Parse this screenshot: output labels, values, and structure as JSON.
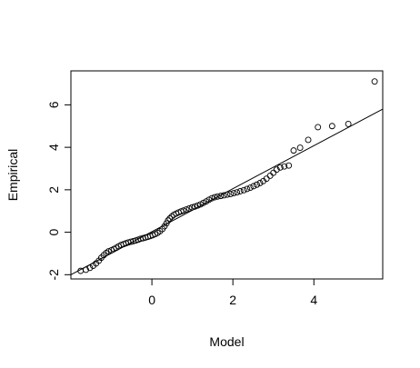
{
  "chart_data": {
    "type": "scatter",
    "title": "",
    "xlabel": "Model",
    "ylabel": "Empirical",
    "xlim": [
      -2.0,
      5.7
    ],
    "ylim": [
      -2.2,
      7.6
    ],
    "xticks": [
      0,
      2,
      4
    ],
    "yticks": [
      -2,
      0,
      2,
      4,
      6
    ],
    "grid": false,
    "legend": "none",
    "line": {
      "x1": -2.0,
      "y1": -2.0,
      "x2": 5.7,
      "y2": 5.8
    },
    "points": [
      [
        -1.76,
        -1.82
      ],
      [
        -1.63,
        -1.77
      ],
      [
        -1.53,
        -1.68
      ],
      [
        -1.45,
        -1.58
      ],
      [
        -1.38,
        -1.47
      ],
      [
        -1.31,
        -1.34
      ],
      [
        -1.25,
        -1.2
      ],
      [
        -1.19,
        -1.08
      ],
      [
        -1.13,
        -0.98
      ],
      [
        -1.07,
        -0.9
      ],
      [
        -1.0,
        -0.85
      ],
      [
        -0.94,
        -0.79
      ],
      [
        -0.88,
        -0.73
      ],
      [
        -0.82,
        -0.66
      ],
      [
        -0.76,
        -0.6
      ],
      [
        -0.7,
        -0.56
      ],
      [
        -0.64,
        -0.52
      ],
      [
        -0.58,
        -0.48
      ],
      [
        -0.52,
        -0.45
      ],
      [
        -0.46,
        -0.42
      ],
      [
        -0.4,
        -0.39
      ],
      [
        -0.34,
        -0.35
      ],
      [
        -0.28,
        -0.31
      ],
      [
        -0.22,
        -0.28
      ],
      [
        -0.16,
        -0.25
      ],
      [
        -0.1,
        -0.22
      ],
      [
        -0.04,
        -0.18
      ],
      [
        0.02,
        -0.14
      ],
      [
        0.08,
        -0.09
      ],
      [
        0.14,
        -0.03
      ],
      [
        0.2,
        0.05
      ],
      [
        0.26,
        0.15
      ],
      [
        0.31,
        0.28
      ],
      [
        0.36,
        0.42
      ],
      [
        0.4,
        0.55
      ],
      [
        0.44,
        0.65
      ],
      [
        0.49,
        0.74
      ],
      [
        0.54,
        0.82
      ],
      [
        0.6,
        0.88
      ],
      [
        0.66,
        0.93
      ],
      [
        0.72,
        0.98
      ],
      [
        0.78,
        1.02
      ],
      [
        0.85,
        1.07
      ],
      [
        0.92,
        1.12
      ],
      [
        0.99,
        1.17
      ],
      [
        1.06,
        1.21
      ],
      [
        1.13,
        1.26
      ],
      [
        1.2,
        1.31
      ],
      [
        1.27,
        1.38
      ],
      [
        1.34,
        1.45
      ],
      [
        1.41,
        1.53
      ],
      [
        1.48,
        1.6
      ],
      [
        1.55,
        1.65
      ],
      [
        1.62,
        1.68
      ],
      [
        1.7,
        1.71
      ],
      [
        1.78,
        1.74
      ],
      [
        1.86,
        1.77
      ],
      [
        1.94,
        1.8
      ],
      [
        2.02,
        1.84
      ],
      [
        2.1,
        1.88
      ],
      [
        2.18,
        1.93
      ],
      [
        2.27,
        1.98
      ],
      [
        2.35,
        2.04
      ],
      [
        2.43,
        2.1
      ],
      [
        2.51,
        2.17
      ],
      [
        2.59,
        2.24
      ],
      [
        2.67,
        2.32
      ],
      [
        2.75,
        2.41
      ],
      [
        2.83,
        2.52
      ],
      [
        2.92,
        2.66
      ],
      [
        3.0,
        2.8
      ],
      [
        3.08,
        2.95
      ],
      [
        3.17,
        3.05
      ],
      [
        3.27,
        3.1
      ],
      [
        3.38,
        3.14
      ],
      [
        3.5,
        3.85
      ],
      [
        3.66,
        3.98
      ],
      [
        3.86,
        4.35
      ],
      [
        4.1,
        4.95
      ],
      [
        4.45,
        5.0
      ],
      [
        4.85,
        5.1
      ],
      [
        5.5,
        7.1
      ]
    ]
  }
}
